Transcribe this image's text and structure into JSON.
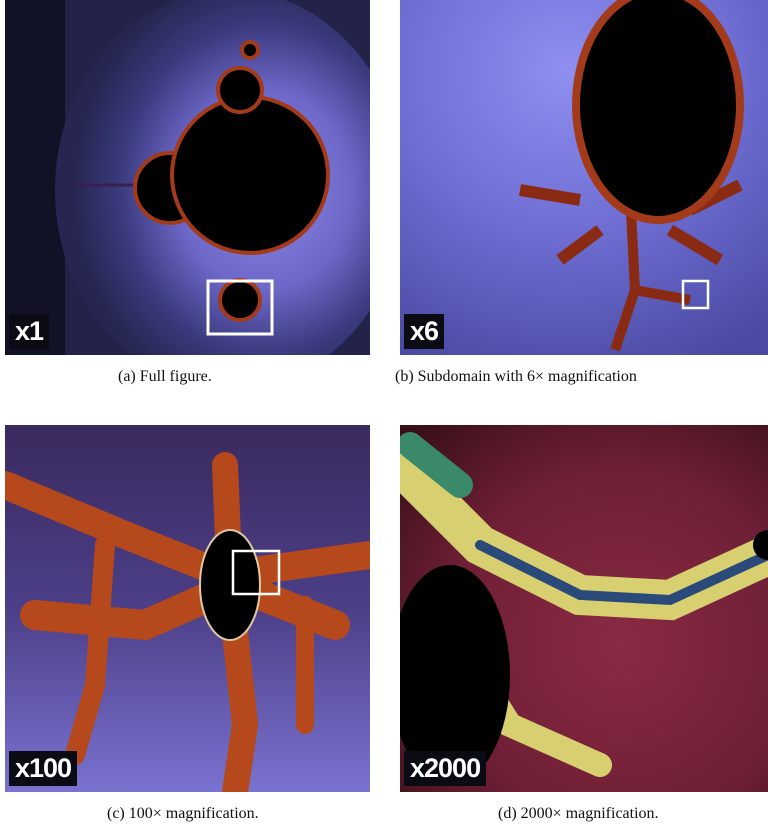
{
  "panels": [
    {
      "label": "x1",
      "caption": "(a) Full figure."
    },
    {
      "label": "x6",
      "caption": "(b) Subdomain with 6× magnification"
    },
    {
      "label": "x100",
      "caption": "(c) 100× magnification."
    },
    {
      "label": "x2000",
      "caption": "(d) 2000× magnification."
    }
  ]
}
